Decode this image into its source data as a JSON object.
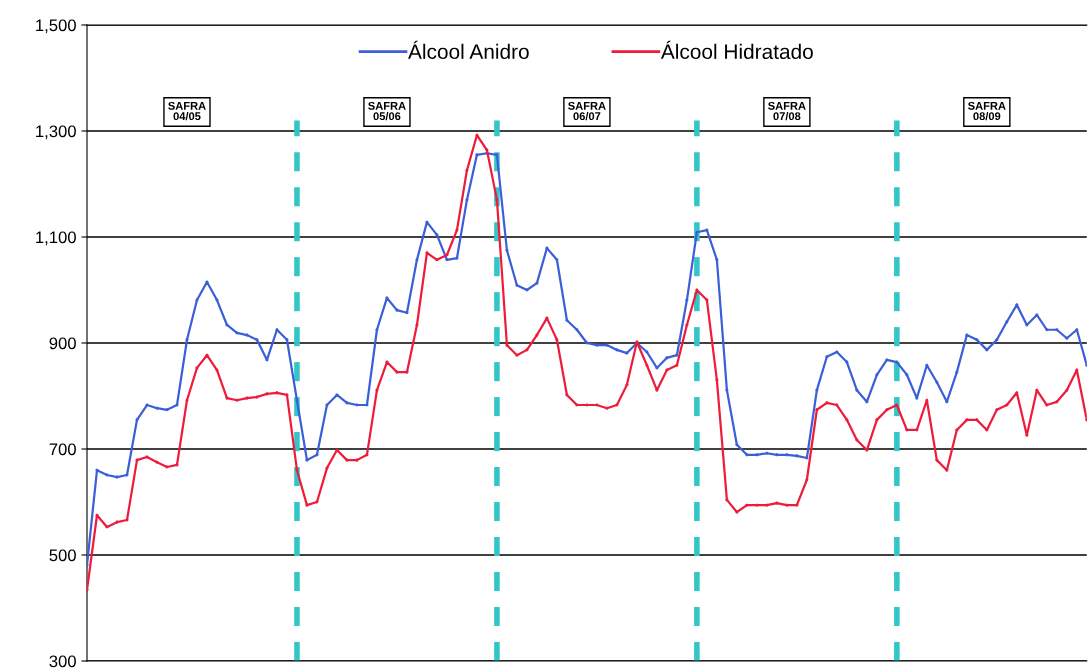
{
  "chart_data": {
    "type": "line",
    "categories": [
      null,
      null,
      null,
      null,
      null,
      null,
      null,
      null,
      null,
      null,
      null,
      null,
      null,
      null,
      null,
      null,
      null,
      null,
      null,
      null,
      null,
      null,
      null,
      null,
      null,
      null,
      null,
      null,
      null,
      null,
      null,
      null,
      null,
      null,
      null,
      null,
      null,
      null,
      null,
      null,
      null,
      null,
      null,
      null,
      null,
      null,
      null,
      null,
      null,
      null,
      null,
      null,
      null,
      null,
      null,
      null,
      null,
      null,
      null,
      null,
      null,
      null,
      null,
      null,
      null,
      null,
      null,
      null,
      null,
      null,
      null,
      null,
      null,
      null,
      null,
      null,
      null,
      null,
      null,
      null,
      null,
      null,
      null,
      null,
      null,
      null,
      null,
      null,
      null,
      null,
      null,
      null,
      null,
      null,
      null,
      null,
      null,
      null,
      null,
      null,
      null
    ],
    "series": [
      {
        "name": "Álcool Anidro",
        "color": "#3a5fd9",
        "values": [
          481,
          660,
          651,
          647,
          651,
          755,
          783,
          777,
          774,
          783,
          906,
          981,
          1015,
          981,
          934,
          919,
          915,
          906,
          868,
          925,
          906,
          792,
          679,
          689,
          783,
          802,
          787,
          783,
          783,
          925,
          985,
          962,
          957,
          1057,
          1128,
          1104,
          1057,
          1060,
          1170,
          1255,
          1258,
          1255,
          1075,
          1009,
          1000,
          1013,
          1079,
          1057,
          943,
          925,
          900,
          896,
          896,
          887,
          881,
          900,
          883,
          853,
          872,
          877,
          981,
          1109,
          1113,
          1057,
          811,
          708,
          689,
          689,
          692,
          689,
          689,
          687,
          683,
          811,
          874,
          883,
          864,
          811,
          789,
          840,
          868,
          864,
          840,
          796,
          858,
          826,
          789,
          845,
          915,
          906,
          887,
          906,
          940,
          972,
          934,
          953,
          925,
          925,
          909,
          925,
          858
        ]
      },
      {
        "name": "Álcool Hidratado",
        "color": "#ee1c3a",
        "values": [
          434,
          575,
          553,
          562,
          566,
          679,
          685,
          675,
          666,
          670,
          792,
          853,
          877,
          849,
          796,
          792,
          796,
          798,
          804,
          806,
          802,
          660,
          594,
          600,
          664,
          698,
          679,
          679,
          689,
          811,
          864,
          845,
          845,
          934,
          1070,
          1057,
          1066,
          1113,
          1226,
          1292,
          1264,
          1170,
          896,
          877,
          887,
          915,
          947,
          906,
          802,
          783,
          783,
          783,
          777,
          783,
          821,
          902,
          858,
          811,
          849,
          858,
          934,
          1000,
          981,
          830,
          604,
          581,
          594,
          594,
          594,
          598,
          594,
          594,
          642,
          774,
          787,
          783,
          755,
          717,
          698,
          755,
          774,
          783,
          736,
          736,
          792,
          679,
          660,
          736,
          755,
          755,
          736,
          774,
          783,
          806,
          726,
          811,
          783,
          789,
          811,
          849,
          755
        ]
      }
    ],
    "ylim": [
      300,
      1500
    ],
    "yticks": [
      {
        "value": 300,
        "label": "300"
      },
      {
        "value": 500,
        "label": "500"
      },
      {
        "value": 700,
        "label": "700"
      },
      {
        "value": 900,
        "label": "900"
      },
      {
        "value": 1100,
        "label": "1,100"
      },
      {
        "value": 1300,
        "label": "1,300"
      },
      {
        "value": 1500,
        "label": "1,500"
      }
    ],
    "annotations": [
      "SAFRA\n04/05",
      "SAFRA\n05/06",
      "SAFRA\n06/07",
      "SAFRA\n07/08",
      "SAFRA\n08/09"
    ],
    "grid": "y",
    "legend": "top",
    "marker": "circle",
    "line_style": "solid",
    "tick_labels": "y"
  }
}
